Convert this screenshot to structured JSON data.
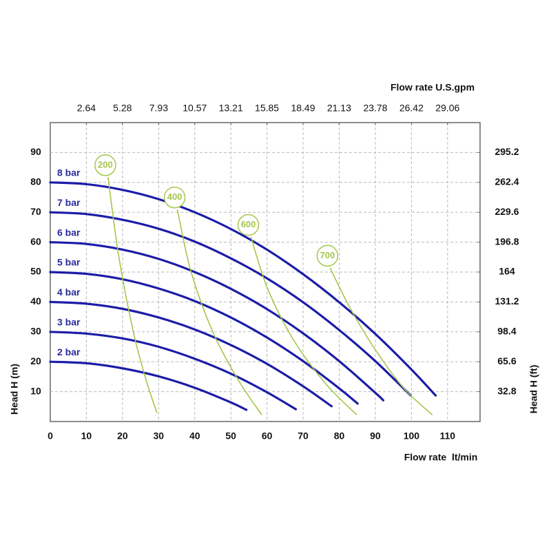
{
  "chart_data": {
    "type": "line",
    "top_axis_label": "Flow rate U.S.gpm",
    "x_axis_label": "Flow rate  lt/min",
    "y_axis_label": "Head H (m)",
    "y2_axis_label": "Head H (ft)",
    "xlim": [
      0,
      119
    ],
    "xticks": [
      0,
      10,
      20,
      30,
      40,
      50,
      60,
      70,
      80,
      90,
      100,
      110
    ],
    "x2lim": [
      0,
      31.44
    ],
    "x2ticks": [
      2.64,
      5.28,
      7.93,
      10.57,
      13.21,
      15.85,
      18.49,
      21.13,
      23.78,
      26.42,
      29.06
    ],
    "ylim": [
      0,
      100
    ],
    "yticks": [
      10,
      20,
      30,
      40,
      50,
      60,
      70,
      80,
      90
    ],
    "y2lim": [
      0,
      328
    ],
    "y2ticks": [
      32.8,
      65.6,
      98.4,
      131.2,
      164,
      196.8,
      229.6,
      262.4,
      295.2
    ],
    "grid": true,
    "series": [
      {
        "name": "2 bar",
        "color": "#1c1ca8",
        "x": [
          0,
          10,
          20,
          30,
          40,
          50,
          54.3
        ],
        "values": [
          20,
          19.5,
          17.8,
          15.1,
          11.3,
          6.4,
          3.9
        ]
      },
      {
        "name": "3 bar",
        "color": "#1c1ca8",
        "x": [
          0,
          10,
          20,
          30,
          40,
          50,
          60,
          68
        ],
        "values": [
          30,
          29.4,
          27.8,
          25,
          21,
          16,
          9.8,
          4.1
        ]
      },
      {
        "name": "4 bar",
        "color": "#1c1ca8",
        "x": [
          0,
          10,
          20,
          30,
          40,
          50,
          60,
          70,
          77.9
        ],
        "values": [
          40,
          39.4,
          37.7,
          34.8,
          30.8,
          25.6,
          19.3,
          11.8,
          5.1
        ]
      },
      {
        "name": "5 bar",
        "color": "#1c1ca8",
        "x": [
          0,
          10,
          20,
          30,
          40,
          50,
          60,
          70,
          80,
          85.1
        ],
        "values": [
          50,
          49.4,
          47.6,
          44.5,
          40.3,
          34.8,
          28.1,
          20.2,
          11.1,
          6.0
        ]
      },
      {
        "name": "6 bar",
        "color": "#1c1ca8",
        "x": [
          0,
          10,
          20,
          30,
          40,
          50,
          60,
          70,
          80,
          90,
          92.2
        ],
        "values": [
          60,
          59.4,
          57.5,
          54.4,
          50,
          44.4,
          37.6,
          29.5,
          20.2,
          9.6,
          7.1
        ]
      },
      {
        "name": "7 bar",
        "color": "#1c1ca8",
        "x": [
          0,
          10,
          20,
          30,
          40,
          50,
          60,
          70,
          80,
          90,
          99.8
        ],
        "values": [
          70,
          69.4,
          67.5,
          64.5,
          60.2,
          54.6,
          47.9,
          39.9,
          30.6,
          20.2,
          8.7
        ]
      },
      {
        "name": "8 bar",
        "color": "#1c1ca8",
        "x": [
          0,
          10,
          20,
          30,
          40,
          50,
          60,
          70,
          80,
          90,
          100,
          106.7
        ],
        "values": [
          80,
          79.4,
          77.5,
          74.4,
          70,
          64.4,
          57.5,
          49.3,
          39.9,
          29.3,
          17.4,
          8.7
        ]
      },
      {
        "name": "200",
        "color": "#a4c64a",
        "x": [
          16,
          19,
          23,
          26.5,
          29.5
        ],
        "values": [
          81.6,
          55,
          30,
          14,
          3
        ]
      },
      {
        "name": "400",
        "color": "#a4c64a",
        "x": [
          35.2,
          39,
          45,
          52,
          58.5
        ],
        "values": [
          70.8,
          50,
          30,
          14,
          2.3
        ]
      },
      {
        "name": "600",
        "color": "#a4c64a",
        "x": [
          55.6,
          60,
          67,
          76,
          84.8
        ],
        "values": [
          61.6,
          45,
          28,
          13,
          2.3
        ]
      },
      {
        "name": "700",
        "color": "#a4c64a",
        "x": [
          77.5,
          83,
          90,
          98,
          105.7
        ],
        "values": [
          51.3,
          38,
          24,
          11,
          2.3
        ]
      }
    ]
  }
}
